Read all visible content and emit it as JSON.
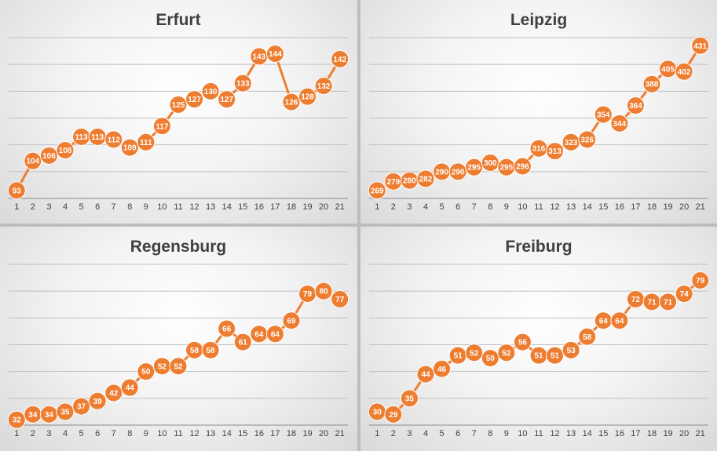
{
  "chart_data": [
    {
      "type": "line",
      "title": "Erfurt",
      "x": [
        1,
        2,
        3,
        4,
        5,
        6,
        7,
        8,
        9,
        10,
        11,
        12,
        13,
        14,
        15,
        16,
        17,
        18,
        19,
        20,
        21
      ],
      "values": [
        93,
        104,
        106,
        108,
        113,
        113,
        112,
        109,
        111,
        117,
        125,
        127,
        130,
        127,
        133,
        143,
        144,
        126,
        128,
        132,
        142
      ],
      "ylim": [
        90,
        150
      ],
      "grid": true,
      "color": "#ed7d31"
    },
    {
      "type": "line",
      "title": "Leipzig",
      "x": [
        1,
        2,
        3,
        4,
        5,
        6,
        7,
        8,
        9,
        10,
        11,
        12,
        13,
        14,
        15,
        16,
        17,
        18,
        19,
        20,
        21
      ],
      "values": [
        269,
        279,
        280,
        282,
        290,
        290,
        295,
        300,
        295,
        296,
        316,
        313,
        323,
        326,
        354,
        344,
        364,
        388,
        405,
        402,
        431
      ],
      "ylim": [
        260,
        440
      ],
      "grid": true,
      "color": "#ed7d31"
    },
    {
      "type": "line",
      "title": "Regensburg",
      "x": [
        1,
        2,
        3,
        4,
        5,
        6,
        7,
        8,
        9,
        10,
        11,
        12,
        13,
        14,
        15,
        16,
        17,
        18,
        19,
        20,
        21
      ],
      "values": [
        32,
        34,
        34,
        35,
        37,
        39,
        42,
        44,
        50,
        52,
        52,
        58,
        58,
        66,
        61,
        64,
        64,
        69,
        79,
        80,
        77
      ],
      "ylim": [
        30,
        90
      ],
      "grid": true,
      "color": "#ed7d31"
    },
    {
      "type": "line",
      "title": "Freiburg",
      "x": [
        1,
        2,
        3,
        4,
        5,
        6,
        7,
        8,
        9,
        10,
        11,
        12,
        13,
        14,
        15,
        16,
        17,
        18,
        19,
        20,
        21
      ],
      "values": [
        30,
        29,
        35,
        44,
        46,
        51,
        52,
        50,
        52,
        56,
        51,
        51,
        53,
        58,
        64,
        64,
        72,
        71,
        71,
        74,
        79
      ],
      "ylim": [
        25,
        85
      ],
      "grid": true,
      "color": "#ed7d31"
    }
  ]
}
